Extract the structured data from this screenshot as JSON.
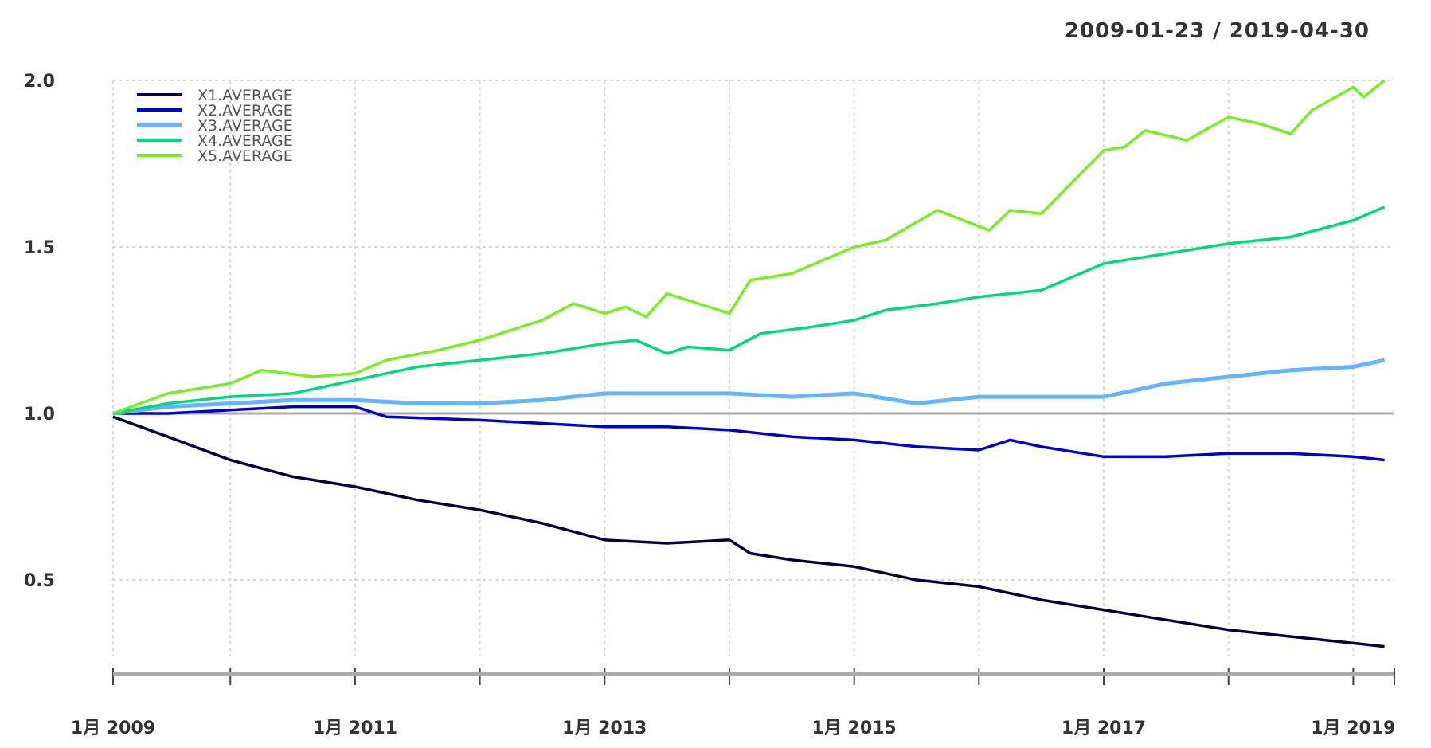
{
  "chart_data": {
    "type": "line",
    "title": "2009-01-23 / 2019-04-30",
    "xlabel": "",
    "ylabel": "",
    "xlim": [
      "2009-01-23",
      "2019-04-30"
    ],
    "ylim": [
      0.3,
      2.0
    ],
    "yticks": [
      0.5,
      1.0,
      1.5,
      2.0
    ],
    "ytick_labels": [
      "0.5",
      "1.0",
      "1.5",
      "2.0"
    ],
    "xtick_labels": [
      {
        "date": "2009-01",
        "label": "1月 2009"
      },
      {
        "date": "2011-01",
        "label": "1月 2011"
      },
      {
        "date": "2013-01",
        "label": "1月 2013"
      },
      {
        "date": "2015-01",
        "label": "1月 2015"
      },
      {
        "date": "2017-01",
        "label": "1月 2017"
      },
      {
        "date": "2019-01",
        "label": "1月 2019"
      }
    ],
    "grid": true,
    "reference_line": 1.0,
    "legend": "top-left",
    "series": [
      {
        "name": "X1.AVERAGE",
        "color": "#000040",
        "x": [
          "2009-01",
          "2009-07",
          "2010-01",
          "2010-07",
          "2011-01",
          "2011-07",
          "2012-01",
          "2012-07",
          "2013-01",
          "2013-07",
          "2014-01",
          "2014-03",
          "2014-07",
          "2015-01",
          "2015-07",
          "2016-01",
          "2016-07",
          "2017-01",
          "2017-07",
          "2018-01",
          "2018-07",
          "2019-01",
          "2019-04"
        ],
        "y": [
          0.99,
          0.93,
          0.86,
          0.81,
          0.78,
          0.74,
          0.71,
          0.67,
          0.62,
          0.61,
          0.62,
          0.58,
          0.56,
          0.54,
          0.5,
          0.48,
          0.44,
          0.41,
          0.38,
          0.35,
          0.33,
          0.31,
          0.3
        ]
      },
      {
        "name": "X2.AVERAGE",
        "color": "#0000cc",
        "x": [
          "2009-01",
          "2009-07",
          "2010-01",
          "2010-07",
          "2011-01",
          "2011-04",
          "2012-01",
          "2012-07",
          "2013-01",
          "2013-07",
          "2014-01",
          "2014-07",
          "2015-01",
          "2015-07",
          "2016-01",
          "2016-04",
          "2016-07",
          "2017-01",
          "2017-07",
          "2018-01",
          "2018-07",
          "2019-01",
          "2019-04"
        ],
        "y": [
          1.0,
          1.0,
          1.01,
          1.02,
          1.02,
          0.99,
          0.98,
          0.97,
          0.96,
          0.96,
          0.95,
          0.93,
          0.92,
          0.9,
          0.89,
          0.92,
          0.9,
          0.87,
          0.87,
          0.88,
          0.88,
          0.87,
          0.86
        ]
      },
      {
        "name": "X3.AVERAGE",
        "color": "#66b3ff",
        "x": [
          "2009-01",
          "2009-07",
          "2010-01",
          "2010-07",
          "2011-01",
          "2011-07",
          "2012-01",
          "2012-07",
          "2013-01",
          "2013-07",
          "2014-01",
          "2014-07",
          "2015-01",
          "2015-07",
          "2016-01",
          "2016-07",
          "2017-01",
          "2017-07",
          "2018-01",
          "2018-07",
          "2019-01",
          "2019-04"
        ],
        "y": [
          1.0,
          1.02,
          1.03,
          1.04,
          1.04,
          1.03,
          1.03,
          1.04,
          1.06,
          1.06,
          1.06,
          1.05,
          1.06,
          1.03,
          1.05,
          1.05,
          1.05,
          1.09,
          1.11,
          1.13,
          1.14,
          1.16
        ]
      },
      {
        "name": "X4.AVERAGE",
        "color": "#00d97a",
        "x": [
          "2009-01",
          "2009-07",
          "2010-01",
          "2010-07",
          "2011-01",
          "2011-07",
          "2012-01",
          "2012-07",
          "2013-01",
          "2013-04",
          "2013-07",
          "2013-09",
          "2014-01",
          "2014-04",
          "2014-09",
          "2015-01",
          "2015-04",
          "2015-09",
          "2016-01",
          "2016-07",
          "2017-01",
          "2017-07",
          "2018-01",
          "2018-07",
          "2019-01",
          "2019-04"
        ],
        "y": [
          1.0,
          1.03,
          1.05,
          1.06,
          1.1,
          1.14,
          1.16,
          1.18,
          1.21,
          1.22,
          1.18,
          1.2,
          1.19,
          1.24,
          1.26,
          1.28,
          1.31,
          1.33,
          1.35,
          1.37,
          1.45,
          1.48,
          1.51,
          1.53,
          1.58,
          1.62
        ]
      },
      {
        "name": "X5.AVERAGE",
        "color": "#77ee22",
        "x": [
          "2009-01",
          "2009-07",
          "2010-01",
          "2010-04",
          "2010-09",
          "2011-01",
          "2011-04",
          "2011-09",
          "2012-01",
          "2012-07",
          "2012-10",
          "2013-01",
          "2013-03",
          "2013-05",
          "2013-07",
          "2014-01",
          "2014-03",
          "2014-07",
          "2015-01",
          "2015-04",
          "2015-09",
          "2016-02",
          "2016-04",
          "2016-07",
          "2017-01",
          "2017-03",
          "2017-05",
          "2017-09",
          "2018-01",
          "2018-04",
          "2018-07",
          "2018-09",
          "2019-01",
          "2019-02",
          "2019-04"
        ],
        "y": [
          1.0,
          1.06,
          1.09,
          1.13,
          1.11,
          1.12,
          1.16,
          1.19,
          1.22,
          1.28,
          1.33,
          1.3,
          1.32,
          1.29,
          1.36,
          1.3,
          1.4,
          1.42,
          1.5,
          1.52,
          1.61,
          1.55,
          1.61,
          1.6,
          1.79,
          1.8,
          1.85,
          1.82,
          1.89,
          1.87,
          1.84,
          1.91,
          1.98,
          1.95,
          2.0
        ]
      }
    ]
  }
}
